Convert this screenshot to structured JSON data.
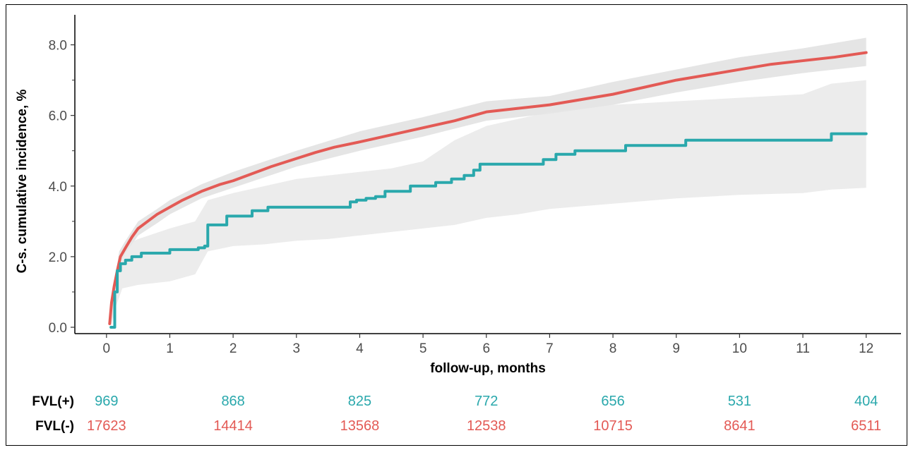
{
  "chart_data": {
    "type": "line",
    "xlabel": "follow-up, months",
    "ylabel": "C-s. cumulative incidence, %",
    "xlim": [
      -0.5,
      12.55
    ],
    "ylim": [
      -0.18,
      8.85
    ],
    "xticks": [
      0,
      1,
      2,
      3,
      4,
      5,
      6,
      7,
      8,
      9,
      10,
      11,
      12
    ],
    "xtick_labels": [
      "0",
      "1",
      "2",
      "3",
      "4",
      "5",
      "6",
      "7",
      "8",
      "9",
      "10",
      "11",
      "12"
    ],
    "yticks": [
      0,
      2,
      4,
      6,
      8
    ],
    "ytick_labels": [
      "0.0",
      "2.0",
      "4.0",
      "6.0",
      "8.0"
    ],
    "yticks_minor": [
      1,
      3,
      5,
      7
    ],
    "grid": false,
    "series": [
      {
        "name": "FVL(-)",
        "color": "#e35a55",
        "step": false,
        "x": [
          0.05,
          0.08,
          0.12,
          0.17,
          0.22,
          0.3,
          0.4,
          0.5,
          0.65,
          0.8,
          1.0,
          1.2,
          1.5,
          1.8,
          2.0,
          2.3,
          2.6,
          3.0,
          3.3,
          3.6,
          4.0,
          4.5,
          5.0,
          5.5,
          6.0,
          6.5,
          7.0,
          7.5,
          8.0,
          8.5,
          9.0,
          9.5,
          10.0,
          10.5,
          11.0,
          11.5,
          12.0
        ],
        "y": [
          0.1,
          0.7,
          1.15,
          1.6,
          2.0,
          2.25,
          2.55,
          2.8,
          3.0,
          3.2,
          3.4,
          3.6,
          3.85,
          4.05,
          4.15,
          4.35,
          4.55,
          4.78,
          4.95,
          5.1,
          5.25,
          5.45,
          5.65,
          5.85,
          6.1,
          6.2,
          6.3,
          6.45,
          6.6,
          6.8,
          7.0,
          7.15,
          7.3,
          7.45,
          7.55,
          7.65,
          7.78
        ]
      },
      {
        "name": "FVL(+)",
        "color": "#2aa8ac",
        "step": true,
        "x": [
          0.07,
          0.13,
          0.17,
          0.22,
          0.3,
          0.4,
          0.55,
          1.0,
          1.45,
          1.55,
          1.6,
          1.9,
          2.3,
          2.55,
          3.4,
          3.85,
          3.95,
          4.1,
          4.25,
          4.4,
          4.6,
          4.8,
          5.0,
          5.2,
          5.45,
          5.65,
          5.8,
          5.9,
          6.9,
          7.1,
          7.4,
          8.0,
          8.2,
          9.0,
          9.15,
          10.0,
          11.0,
          11.45,
          12.0
        ],
        "y": [
          0.0,
          1.0,
          1.6,
          1.8,
          1.9,
          2.0,
          2.1,
          2.2,
          2.25,
          2.3,
          2.9,
          3.15,
          3.3,
          3.4,
          3.4,
          3.55,
          3.6,
          3.65,
          3.7,
          3.85,
          3.85,
          4.0,
          4.0,
          4.1,
          4.2,
          4.3,
          4.45,
          4.62,
          4.75,
          4.9,
          5.0,
          5.0,
          5.15,
          5.15,
          5.3,
          5.3,
          5.3,
          5.48,
          5.48
        ]
      }
    ],
    "ci_bands": [
      {
        "series": "FVL(-)",
        "color": "#dcdcdc",
        "x": [
          0.05,
          0.1,
          0.2,
          0.3,
          0.5,
          0.8,
          1.0,
          1.5,
          2.0,
          3.0,
          4.0,
          5.0,
          6.0,
          7.0,
          8.0,
          9.0,
          10.0,
          11.0,
          12.0
        ],
        "lower": [
          0.05,
          0.6,
          1.75,
          2.1,
          2.6,
          2.95,
          3.2,
          3.65,
          3.95,
          4.55,
          5.0,
          5.4,
          5.85,
          6.05,
          6.3,
          6.65,
          6.95,
          7.2,
          7.4
        ],
        "upper": [
          0.3,
          0.95,
          2.15,
          2.45,
          3.0,
          3.35,
          3.6,
          4.05,
          4.4,
          5.0,
          5.55,
          5.95,
          6.4,
          6.55,
          6.95,
          7.3,
          7.65,
          7.9,
          8.2
        ]
      },
      {
        "series": "FVL(+)",
        "color": "#e6e6e6",
        "x": [
          0.07,
          0.15,
          0.25,
          0.5,
          1.0,
          1.4,
          1.6,
          2.0,
          2.5,
          3.0,
          3.5,
          4.0,
          4.5,
          5.0,
          5.5,
          6.0,
          6.5,
          7.0,
          8.0,
          9.0,
          10.0,
          11.0,
          11.45,
          12.0
        ],
        "lower": [
          0.0,
          0.6,
          1.1,
          1.2,
          1.3,
          1.5,
          2.15,
          2.3,
          2.35,
          2.45,
          2.5,
          2.6,
          2.7,
          2.8,
          2.9,
          3.1,
          3.2,
          3.35,
          3.5,
          3.65,
          3.75,
          3.8,
          3.9,
          3.95
        ],
        "upper": [
          0.3,
          1.55,
          2.3,
          2.5,
          2.8,
          3.0,
          3.6,
          3.8,
          4.0,
          4.2,
          4.3,
          4.4,
          4.5,
          4.7,
          5.3,
          5.7,
          5.9,
          6.1,
          6.3,
          6.4,
          6.5,
          6.6,
          6.9,
          7.0
        ]
      }
    ],
    "risk_table": {
      "times": [
        0,
        2,
        4,
        6,
        8,
        10,
        12
      ],
      "rows": [
        {
          "label": "FVL(+)",
          "color": "#2aa8ac",
          "values": [
            "969",
            "868",
            "825",
            "772",
            "656",
            "531",
            "404"
          ]
        },
        {
          "label": "FVL(-)",
          "color": "#e35a55",
          "values": [
            "17623",
            "14414",
            "13568",
            "12538",
            "10715",
            "8641",
            "6511"
          ]
        }
      ]
    }
  }
}
